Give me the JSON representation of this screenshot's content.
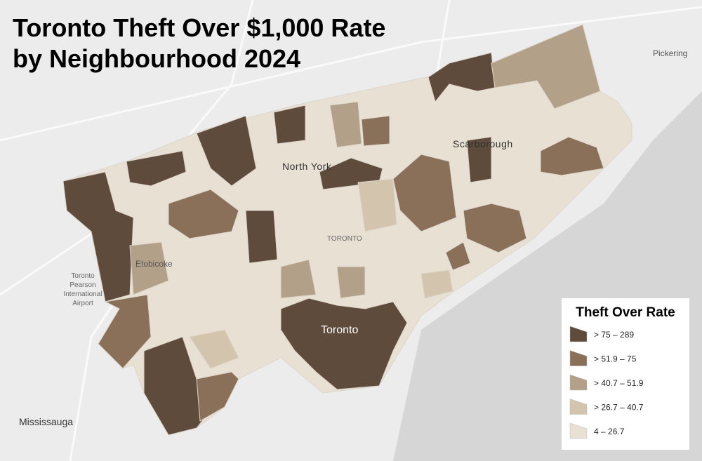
{
  "map": {
    "title": [
      "Toronto Theft Over $1,000 Rate",
      "by Neighbourhood 2024"
    ],
    "places": {
      "pickering": "Pickering",
      "scarborough": "Scarborough",
      "north_york": "North York",
      "etobicoke": "Etobicoke",
      "airport": [
        "Toronto",
        "Pearson",
        "International",
        "Airport"
      ],
      "toronto_small": "TORONTO",
      "toronto": "Toronto",
      "mississauga": "Mississauga"
    },
    "legend": {
      "title": "Theft Over Rate",
      "items": [
        {
          "label": "> 75 – 289",
          "color": "#5f4b3b"
        },
        {
          "label": "> 51.9 – 75",
          "color": "#8a7058"
        },
        {
          "label": "> 40.7 – 51.9",
          "color": "#b3a088"
        },
        {
          "label": "> 26.7 – 40.7",
          "color": "#d3c4ae"
        },
        {
          "label": "4 – 26.7",
          "color": "#e8e0d3"
        }
      ]
    }
  }
}
